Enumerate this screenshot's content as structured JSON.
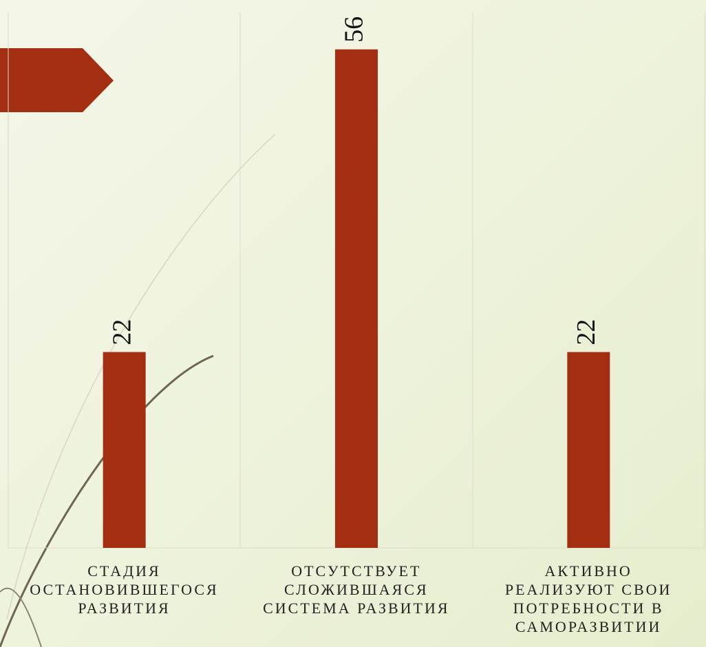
{
  "chart_data": {
    "type": "bar",
    "categories": [
      "СТАДИЯ\nОСТАНОВИВШЕГОСЯ\nРАЗВИТИЯ",
      "ОТСУТСТВУЕТ\nСЛОЖИВШАЯСЯ\nСИСТЕМА РАЗВИТИЯ",
      "АКТИВНО\nРЕАЛИЗУЮТ СВОИ\nПОТРЕБНОСТИ В\nСАМОРАЗВИТИИ"
    ],
    "values": [
      22,
      56,
      22
    ],
    "color": "#a32e12",
    "ylim": [
      0,
      60
    ]
  }
}
